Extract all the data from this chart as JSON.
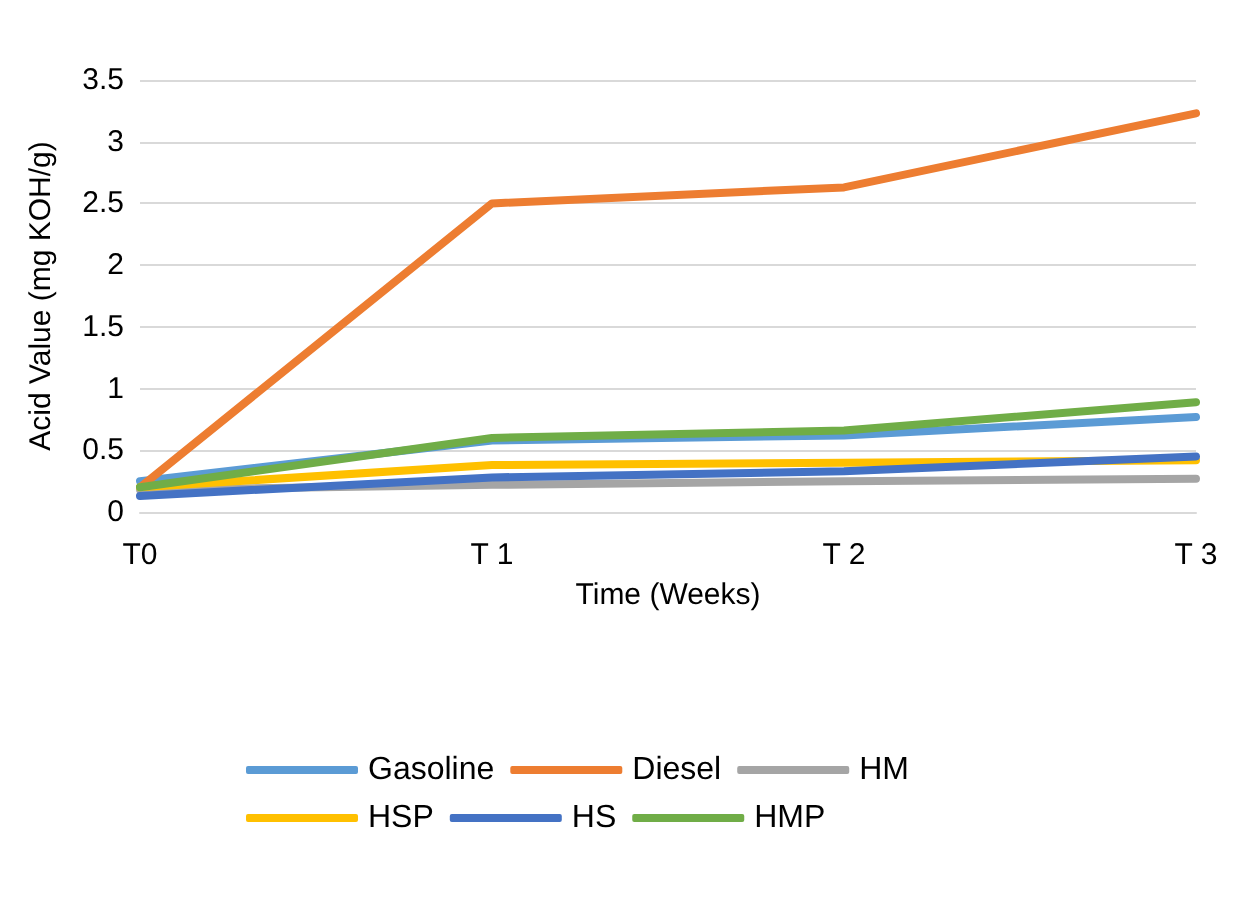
{
  "chart_data": {
    "type": "line",
    "xlabel": "Time (Weeks)",
    "ylabel": "Acid Value (mg KOH/g)",
    "categories": [
      "T0",
      "T 1",
      "T 2",
      "T 3"
    ],
    "series": [
      {
        "name": "Gasoline",
        "color": "#5b9bd5",
        "values": [
          0.25,
          0.58,
          0.62,
          0.77
        ]
      },
      {
        "name": "Diesel",
        "color": "#ed7d31",
        "values": [
          0.2,
          2.5,
          2.63,
          3.23
        ]
      },
      {
        "name": "HM",
        "color": "#a5a5a5",
        "values": [
          0.18,
          0.22,
          0.25,
          0.27
        ]
      },
      {
        "name": "HSP",
        "color": "#ffc000",
        "values": [
          0.2,
          0.38,
          0.4,
          0.42
        ]
      },
      {
        "name": "HS",
        "color": "#4472c4",
        "values": [
          0.13,
          0.28,
          0.33,
          0.45
        ]
      },
      {
        "name": "HMP",
        "color": "#70ad47",
        "values": [
          0.2,
          0.6,
          0.66,
          0.89
        ]
      }
    ],
    "ylim": [
      0,
      3.5
    ],
    "yticks": [
      0,
      0.5,
      1,
      1.5,
      2,
      2.5,
      3,
      3.5
    ],
    "grid": "y",
    "legend": "bottom",
    "marker": "none",
    "line_style": "solid"
  }
}
